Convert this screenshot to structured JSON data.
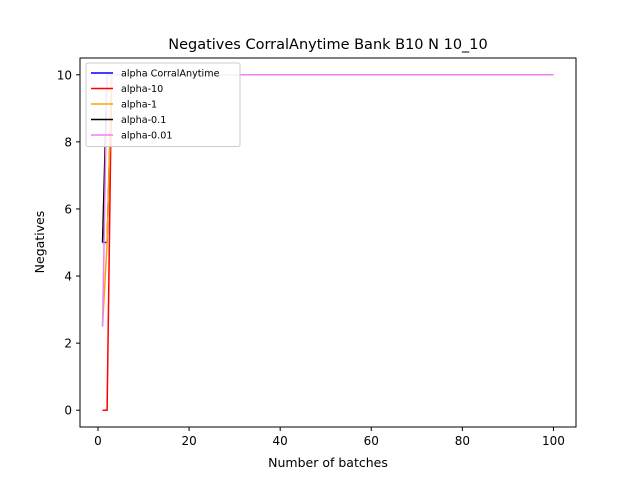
{
  "chart_data": {
    "type": "line",
    "title": "Negatives CorralAnytime Bank B10 N 10_10",
    "xlabel": "Number of batches",
    "ylabel": "Negatives",
    "xlim": [
      -3.95,
      104.95
    ],
    "ylim": [
      -0.5,
      10.5
    ],
    "xticks": [
      0,
      20,
      40,
      60,
      80,
      100
    ],
    "yticks": [
      0,
      2,
      4,
      6,
      8,
      10
    ],
    "grid": false,
    "legend_position": "top-left",
    "series": [
      {
        "name": "alpha CorralAnytime",
        "color": "#0000ff",
        "x": [
          1,
          2,
          3,
          4,
          5,
          10,
          20,
          40,
          60,
          80,
          100
        ],
        "y": [
          5,
          5,
          10,
          10,
          10,
          10,
          10,
          10,
          10,
          10,
          10
        ]
      },
      {
        "name": "alpha-10",
        "color": "#ff0000",
        "x": [
          1,
          2,
          3,
          4,
          5,
          10,
          20,
          40,
          60,
          80,
          100
        ],
        "y": [
          0,
          0,
          10,
          10,
          10,
          10,
          10,
          10,
          10,
          10,
          10
        ]
      },
      {
        "name": "alpha-1",
        "color": "#ffa500",
        "x": [
          1,
          2,
          3,
          4,
          5,
          10,
          20,
          40,
          60,
          80,
          100
        ],
        "y": [
          2.5,
          5,
          10,
          10,
          10,
          10,
          10,
          10,
          10,
          10,
          10
        ]
      },
      {
        "name": "alpha-0.1",
        "color": "#000000",
        "x": [
          1,
          2,
          3,
          4,
          5,
          10,
          20,
          40,
          60,
          80,
          100
        ],
        "y": [
          5,
          10,
          10,
          10,
          10,
          10,
          10,
          10,
          10,
          10,
          10
        ]
      },
      {
        "name": "alpha-0.01",
        "color": "#ee82ee",
        "x": [
          1,
          2,
          3,
          4,
          5,
          10,
          20,
          40,
          60,
          80,
          100
        ],
        "y": [
          2.5,
          10,
          10,
          10,
          10,
          10,
          10,
          10,
          10,
          10,
          10
        ]
      }
    ]
  }
}
